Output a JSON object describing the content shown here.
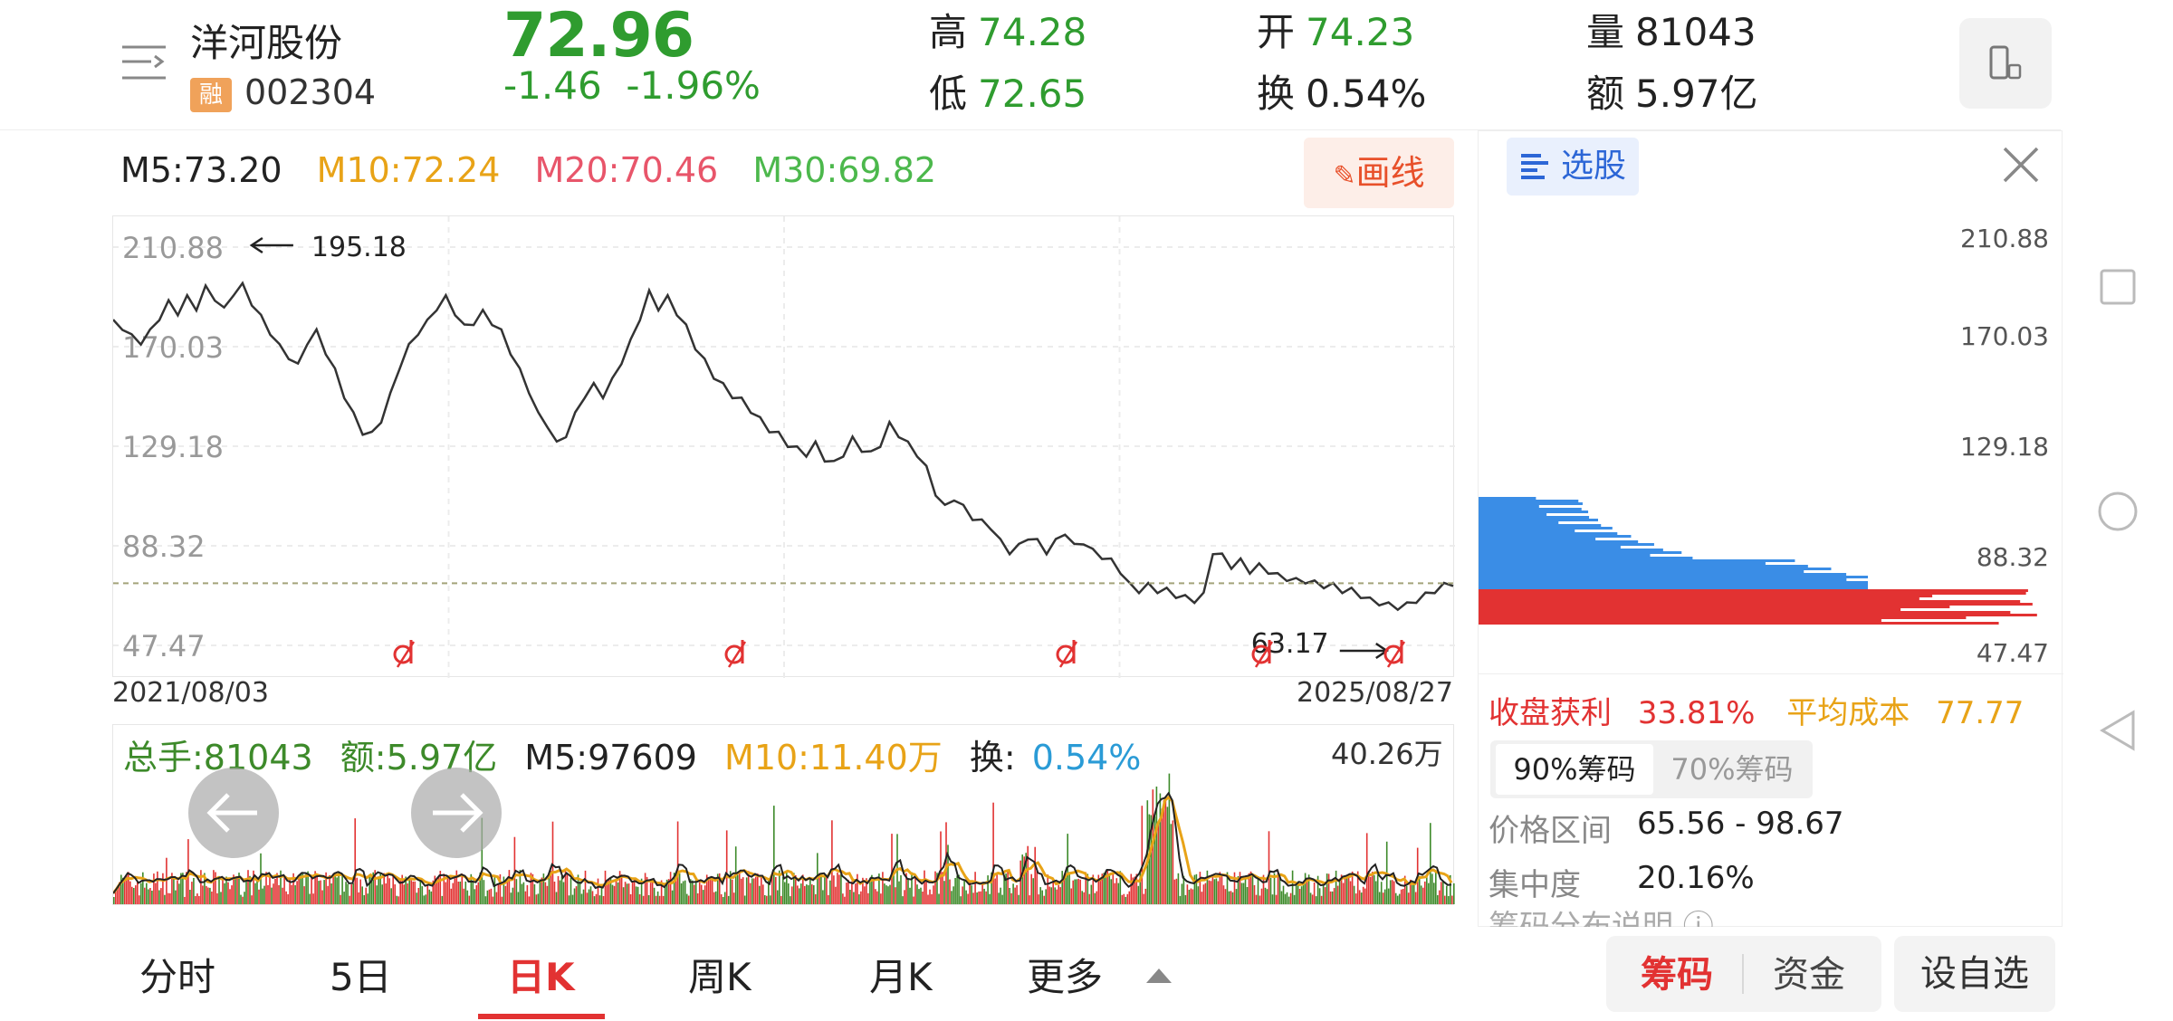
{
  "header": {
    "stock_name": "洋河股份",
    "rong_badge": "融",
    "stock_code": "002304",
    "price": "72.96",
    "change": "-1.46",
    "change_pct": "-1.96%",
    "high_label": "高",
    "high_value": "74.28",
    "low_label": "低",
    "low_value": "72.65",
    "open_label": "开",
    "open_value": "74.23",
    "turnover_label": "换",
    "turnover_value": "0.54%",
    "volume_label": "量",
    "volume_value": "81043",
    "amount_label": "额",
    "amount_value": "5.97亿"
  },
  "ma": {
    "m5": "M5:73.20",
    "m10": "M10:72.24",
    "m20": "M20:70.46",
    "m30": "M30:69.82",
    "colors": {
      "m5": "#222222",
      "m10": "#e8a317",
      "m20": "#e8556a",
      "m30": "#4cb84c"
    }
  },
  "draw_button": "画线",
  "chart_data": {
    "type": "line",
    "y_ticks": [
      "210.88",
      "170.03",
      "129.18",
      "88.32",
      "47.47"
    ],
    "ylim": [
      47.47,
      210.88
    ],
    "x_start": "2021/08/03",
    "x_end": "2025/08/27",
    "max_annotation": "195.18",
    "min_annotation": "63.17",
    "last_price": 72.96,
    "series": [
      {
        "values": [
          180,
          178,
          174,
          172,
          176,
          182,
          188,
          184,
          190,
          186,
          194,
          190,
          185,
          192,
          195,
          188,
          182,
          176,
          170,
          166,
          162,
          172,
          176,
          168,
          160,
          150,
          142,
          135,
          134,
          140,
          150,
          162,
          170,
          176,
          180,
          186,
          190,
          184,
          178,
          180,
          184,
          180,
          176,
          168,
          160,
          152,
          142,
          138,
          130,
          134,
          142,
          150,
          154,
          150,
          156,
          164,
          172,
          182,
          192,
          186,
          190,
          184,
          178,
          170,
          164,
          158,
          154,
          150,
          148,
          144,
          140,
          136,
          134,
          130,
          128,
          126,
          130,
          124,
          122,
          126,
          132,
          128,
          126,
          130,
          138,
          134,
          130,
          126,
          120,
          110,
          104,
          108,
          104,
          100,
          98,
          96,
          90,
          86,
          88,
          92,
          90,
          86,
          90,
          94,
          88,
          90,
          86,
          84,
          82,
          78,
          72,
          70,
          72,
          70,
          70,
          68,
          67,
          66,
          68,
          86,
          84,
          80,
          82,
          78,
          80,
          78,
          76,
          75,
          74,
          74,
          73,
          72,
          72,
          70,
          70,
          68,
          66,
          65,
          64,
          63.17,
          64,
          66,
          68,
          70,
          72,
          72.96
        ]
      }
    ]
  },
  "chip": {
    "select_label": "选股",
    "y_ticks": [
      "210.88",
      "170.03",
      "129.18",
      "88.32",
      "47.47"
    ],
    "profit_label": "收盘获利",
    "profit_value": "33.81%",
    "avg_cost_label": "平均成本",
    "avg_cost_value": "77.77",
    "tab_90": "90%筹码",
    "tab_70": "70%筹码",
    "range_label": "价格区间",
    "range_value": "65.56 - 98.67",
    "conc_label": "集中度",
    "conc_value": "20.16%",
    "desc_label": "筹码分布说明"
  },
  "volume": {
    "total_label": "总手:81043",
    "amount_label": "额:5.97亿",
    "m5_label": "M5:97609",
    "m10_label": "M10:11.40万",
    "turnover_prefix": "换:",
    "turnover_value": "0.54%",
    "max_label": "40.26万",
    "colors": {
      "up": "#e23232",
      "down": "#3d8a2a",
      "m5": "#222222",
      "m10": "#e8a317"
    }
  },
  "tabs": [
    "分时",
    "5日",
    "日K",
    "周K",
    "月K",
    "更多"
  ],
  "active_tab": "日K",
  "bottom_buttons": {
    "chip": "筹码",
    "funds": "资金",
    "set_fav": "设自选"
  }
}
